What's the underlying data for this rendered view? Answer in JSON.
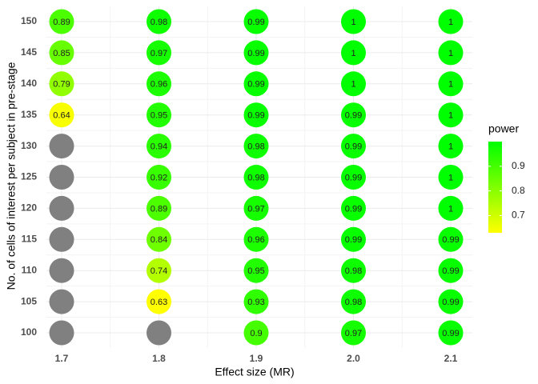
{
  "chart_data": {
    "type": "dot_heatmap",
    "x_label": "Effect size (MR)",
    "y_label": "No. of cells of interest per subject in pre-stage",
    "x_categories": [
      "1.7",
      "1.8",
      "1.9",
      "2.0",
      "2.1"
    ],
    "y_categories": [
      100,
      105,
      110,
      115,
      120,
      125,
      130,
      135,
      140,
      145,
      150
    ],
    "values": [
      [
        null,
        null,
        0.9,
        0.97,
        0.99
      ],
      [
        null,
        0.63,
        0.93,
        0.98,
        0.99
      ],
      [
        null,
        0.74,
        0.95,
        0.98,
        0.99
      ],
      [
        null,
        0.84,
        0.96,
        0.99,
        0.99
      ],
      [
        null,
        0.89,
        0.97,
        0.99,
        1
      ],
      [
        null,
        0.92,
        0.98,
        0.99,
        1
      ],
      [
        null,
        0.94,
        0.98,
        0.99,
        1
      ],
      [
        0.64,
        0.95,
        0.99,
        0.99,
        1
      ],
      [
        0.79,
        0.96,
        0.99,
        1,
        1
      ],
      [
        0.85,
        0.97,
        0.99,
        1,
        1
      ],
      [
        0.89,
        0.98,
        0.99,
        1,
        1
      ]
    ],
    "legend_title": "power",
    "color_lim": [
      0.63,
      1
    ],
    "color_ticks": [
      0.7,
      0.8,
      0.9
    ],
    "colors": [
      "#ffff00",
      "#00ff00"
    ],
    "na_color": "#808080",
    "label_color": "#1f2a7a",
    "low_label_color": "#ff0000",
    "low_label_threshold": 0.8,
    "grid": true
  }
}
